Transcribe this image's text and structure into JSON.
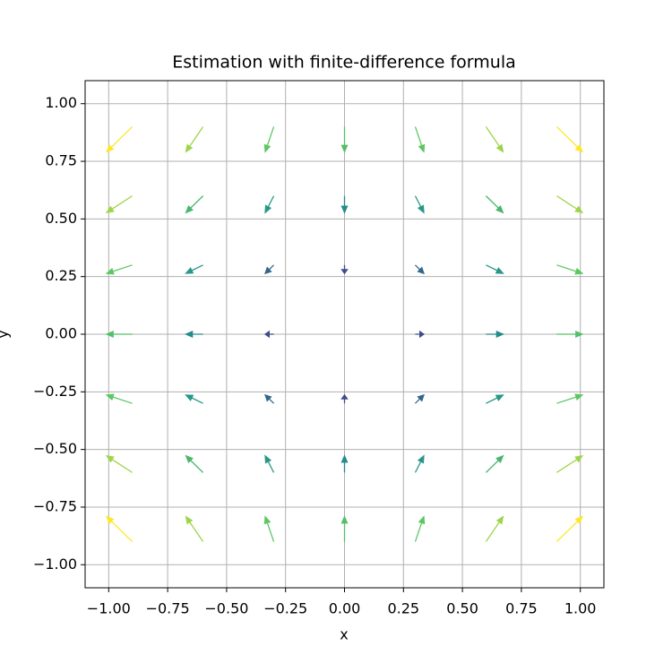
{
  "chart_data": {
    "type": "quiver",
    "title": "Estimation with finite-difference formula",
    "xlabel": "x",
    "ylabel": "y",
    "xlim": [
      -1.1,
      1.1
    ],
    "ylim": [
      -1.1,
      1.1
    ],
    "xticks": [
      {
        "value": -1,
        "label": "−1.00"
      },
      {
        "value": -0.75,
        "label": "−0.75"
      },
      {
        "value": -0.5,
        "label": "−0.50"
      },
      {
        "value": -0.25,
        "label": "−0.25"
      },
      {
        "value": 0,
        "label": "0.00"
      },
      {
        "value": 0.25,
        "label": "0.25"
      },
      {
        "value": 0.5,
        "label": "0.50"
      },
      {
        "value": 0.75,
        "label": "0.75"
      },
      {
        "value": 1,
        "label": "1.00"
      }
    ],
    "yticks": [
      {
        "value": -1,
        "label": "−1.00"
      },
      {
        "value": -0.75,
        "label": "−0.75"
      },
      {
        "value": -0.5,
        "label": "−0.50"
      },
      {
        "value": -0.25,
        "label": "−0.25"
      },
      {
        "value": 0,
        "label": "0.00"
      },
      {
        "value": 0.25,
        "label": "0.25"
      },
      {
        "value": 0.5,
        "label": "0.50"
      },
      {
        "value": 0.75,
        "label": "0.75"
      },
      {
        "value": 1,
        "label": "1.00"
      }
    ],
    "grid": true,
    "colormap": "viridis",
    "x": [
      -0.9,
      -0.6,
      -0.3,
      0,
      0.3,
      0.6,
      0.9,
      -0.9,
      -0.6,
      -0.3,
      0,
      0.3,
      0.6,
      0.9,
      -0.9,
      -0.6,
      -0.3,
      0,
      0.3,
      0.6,
      0.9,
      -0.9,
      -0.6,
      -0.3,
      0,
      0.3,
      0.6,
      0.9,
      -0.9,
      -0.6,
      -0.3,
      0,
      0.3,
      0.6,
      0.9,
      -0.9,
      -0.6,
      -0.3,
      0,
      0.3,
      0.6,
      0.9,
      -0.9,
      -0.6,
      -0.3,
      0,
      0.3,
      0.6,
      0.9
    ],
    "y": [
      -0.9,
      -0.9,
      -0.9,
      -0.9,
      -0.9,
      -0.9,
      -0.9,
      -0.6,
      -0.6,
      -0.6,
      -0.6,
      -0.6,
      -0.6,
      -0.6,
      -0.3,
      -0.3,
      -0.3,
      -0.3,
      -0.3,
      -0.3,
      -0.3,
      0,
      0,
      0,
      0,
      0,
      0,
      0,
      0.3,
      0.3,
      0.3,
      0.3,
      0.3,
      0.3,
      0.3,
      0.6,
      0.6,
      0.6,
      0.6,
      0.6,
      0.6,
      0.6,
      0.9,
      0.9,
      0.9,
      0.9,
      0.9,
      0.9,
      0.9
    ],
    "u": [
      -0.9,
      -0.6,
      -0.3,
      0,
      0.3,
      0.6,
      0.9,
      -0.9,
      -0.6,
      -0.3,
      0,
      0.3,
      0.6,
      0.9,
      -0.9,
      -0.6,
      -0.3,
      0,
      0.3,
      0.6,
      0.9,
      -0.9,
      -0.6,
      -0.3,
      0,
      0.3,
      0.6,
      0.9,
      -0.9,
      -0.6,
      -0.3,
      0,
      0.3,
      0.6,
      0.9,
      -0.9,
      -0.6,
      -0.3,
      0,
      0.3,
      0.6,
      0.9,
      -0.9,
      -0.6,
      -0.3,
      0,
      0.3,
      0.6,
      0.9
    ],
    "v": [
      0.9,
      0.9,
      0.9,
      0.9,
      0.9,
      0.9,
      0.9,
      0.6,
      0.6,
      0.6,
      0.6,
      0.6,
      0.6,
      0.6,
      0.3,
      0.3,
      0.3,
      0.3,
      0.3,
      0.3,
      0.3,
      0,
      0,
      0,
      0,
      0,
      0,
      0,
      -0.3,
      -0.3,
      -0.3,
      -0.3,
      -0.3,
      -0.3,
      -0.3,
      -0.6,
      -0.6,
      -0.6,
      -0.6,
      -0.6,
      -0.6,
      -0.6,
      -0.9,
      -0.9,
      -0.9,
      -0.9,
      -0.9,
      -0.9,
      -0.9
    ]
  }
}
